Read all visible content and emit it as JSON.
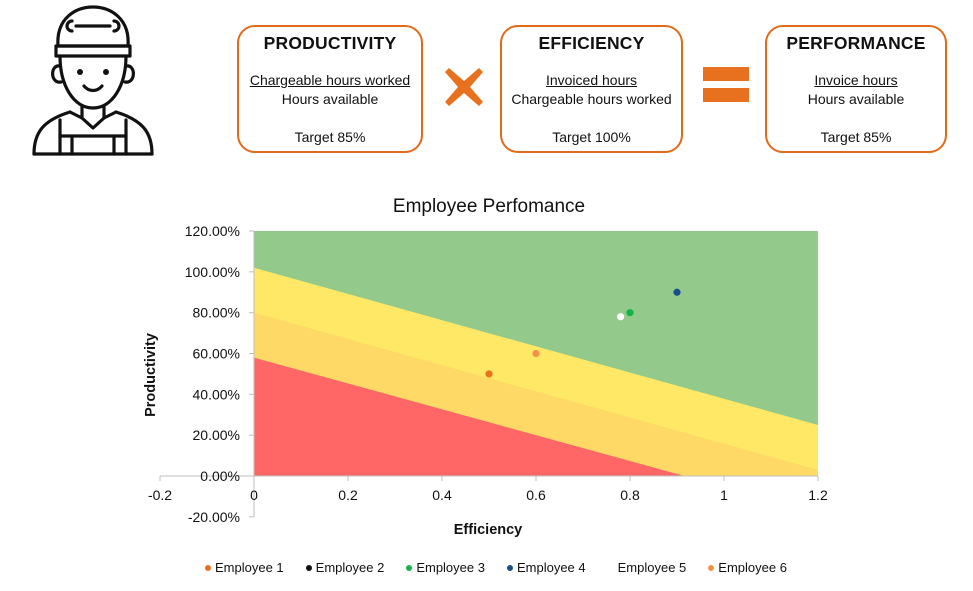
{
  "formula": {
    "productivity": {
      "title": "PRODUCTIVITY",
      "numerator": "Chargeable hours worked",
      "denominator": "Hours available",
      "target": "Target 85%"
    },
    "efficiency": {
      "title": "EFFICIENCY",
      "numerator": "Invoiced hours ",
      "denominator": "Chargeable hours worked",
      "target": "Target 100%"
    },
    "performance": {
      "title": "PERFORMANCE",
      "numerator": "Invoice hours",
      "denominator": "Hours available",
      "target": "Target 85%"
    },
    "accent_color": "#e16b1a",
    "operator_icons": [
      "times-icon",
      "equals-icon"
    ],
    "illustration_icon": "mechanic-icon"
  },
  "chart_data": {
    "type": "scatter",
    "title": "Employee Perfomance",
    "xlabel": "Efficiency",
    "ylabel": "Productivity",
    "xlim": [
      -0.2,
      1.2
    ],
    "ylim": [
      -0.2,
      1.2
    ],
    "x_ticks": [
      "-0.2",
      "0",
      "0.2",
      "0.4",
      "0.6",
      "0.8",
      "1",
      "1.2"
    ],
    "x_tick_values": [
      -0.2,
      0,
      0.2,
      0.4,
      0.6,
      0.8,
      1,
      1.2
    ],
    "y_ticks": [
      "-20.00%",
      "0.00%",
      "20.00%",
      "40.00%",
      "60.00%",
      "80.00%",
      "100.00%",
      "120.00%"
    ],
    "y_tick_values": [
      -0.2,
      0,
      0.2,
      0.4,
      0.6,
      0.8,
      1,
      1.2
    ],
    "grid": false,
    "legend_position": "bottom",
    "background_bands": [
      {
        "color": "#ff6767",
        "y_at_x0": 0.58,
        "y_at_x1_2": -0.18
      },
      {
        "color": "#ffd966",
        "y_at_x0": 0.8,
        "y_at_x1_2": 0.03
      },
      {
        "color": "#ffe866",
        "y_at_x0": 1.02,
        "y_at_x1_2": 0.25
      },
      {
        "color": "#93c98a",
        "y_at_x0": 1.2,
        "y_at_x1_2": 1.2
      }
    ],
    "series": [
      {
        "name": "Employee 1",
        "color": "#e8711f",
        "x": 0.5,
        "y": 0.5
      },
      {
        "name": "Employee 2",
        "color": "#111111",
        "x": null,
        "y": null
      },
      {
        "name": "Employee 3",
        "color": "#18b24b",
        "x": 0.8,
        "y": 0.8
      },
      {
        "name": "Employee 4",
        "color": "#1b4f8c",
        "x": 0.9,
        "y": 0.9
      },
      {
        "name": "Employee 5",
        "color": "#ffffff",
        "x": 0.78,
        "y": 0.78
      },
      {
        "name": "Employee 6",
        "color": "#f2924a",
        "x": 0.6,
        "y": 0.6
      }
    ]
  }
}
